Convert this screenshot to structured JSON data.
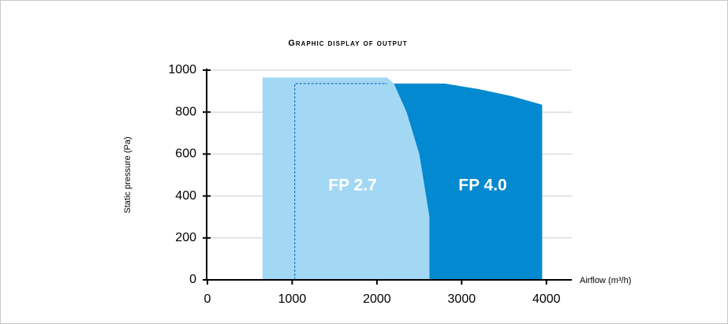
{
  "chart_data": {
    "type": "area",
    "title": "Graphic display of output",
    "ylabel": "Static pressure (Pa)",
    "xlabel": "Airflow (m³/h)",
    "xlim": [
      0,
      4300
    ],
    "ylim": [
      0,
      1000
    ],
    "xticks": [
      0,
      1000,
      2000,
      3000,
      4000
    ],
    "yticks": [
      0,
      200,
      400,
      600,
      800,
      1000
    ],
    "grid": true,
    "series": [
      {
        "name": "FP 2.7",
        "color": "#a3d8f5",
        "x": [
          650,
          650,
          2120,
          2200,
          2350,
          2500,
          2620,
          2620
        ],
        "y": [
          0,
          965,
          965,
          936,
          800,
          600,
          300,
          0
        ]
      },
      {
        "name": "FP 4.0",
        "color": "#0289cf",
        "x": [
          2200,
          2800,
          3200,
          3600,
          3950,
          3950,
          2620,
          2620,
          2500,
          2350
        ],
        "y": [
          936,
          936,
          910,
          875,
          835,
          0,
          0,
          300,
          600,
          800
        ]
      }
    ],
    "outline": {
      "color": "#1a73c0",
      "x": [
        1030,
        1030,
        2120
      ],
      "y": [
        0,
        936,
        936
      ]
    }
  }
}
